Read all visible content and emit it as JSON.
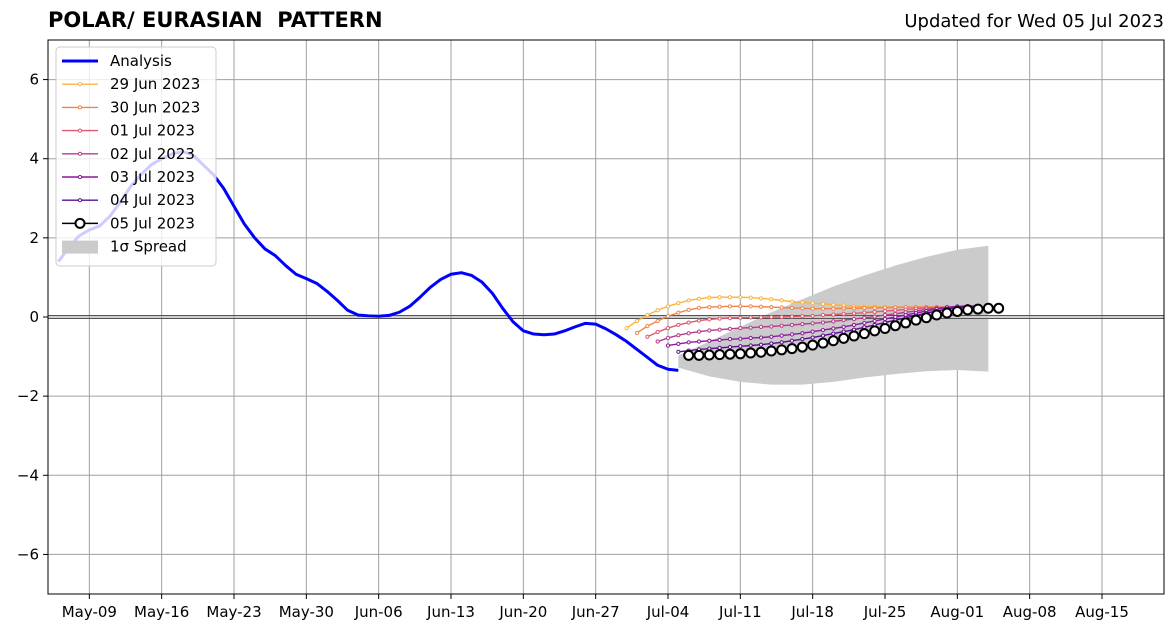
{
  "header": {
    "title": "POLAR/ EURASIAN  PATTERN",
    "updated": "Updated for Wed 05 Jul 2023"
  },
  "colors": {
    "analysis": "#0000ff",
    "f0629": "#fbb33f",
    "f0630": "#f1844a",
    "f0701": "#dd5a6e",
    "f0702": "#b63c8a",
    "f0703": "#8b1a9c",
    "f0704": "#5a0e8e",
    "f0705": "#000000",
    "spread": "#cbcbcb",
    "grid": "#a0a0a0"
  },
  "chart_data": {
    "type": "line",
    "xaxis": {
      "type": "date",
      "range": [
        "2023-05-05",
        "2023-08-21"
      ],
      "ticks": [
        "2023-05-09",
        "2023-05-16",
        "2023-05-23",
        "2023-05-30",
        "2023-06-06",
        "2023-06-13",
        "2023-06-20",
        "2023-06-27",
        "2023-07-04",
        "2023-07-11",
        "2023-07-18",
        "2023-07-25",
        "2023-08-01",
        "2023-08-08",
        "2023-08-15"
      ],
      "tick_labels": [
        "May-09",
        "May-16",
        "May-23",
        "May-30",
        "Jun-06",
        "Jun-13",
        "Jun-20",
        "Jun-27",
        "Jul-04",
        "Jul-11",
        "Jul-18",
        "Jul-25",
        "Aug-01",
        "Aug-08",
        "Aug-15"
      ]
    },
    "yaxis": {
      "range": [
        -7,
        7
      ],
      "ticks": [
        -6,
        -4,
        -2,
        0,
        2,
        4,
        6
      ],
      "tick_labels": [
        "−6",
        "−4",
        "−2",
        "0",
        "2",
        "4",
        "6"
      ]
    },
    "grid": true,
    "legend_position": "top-left",
    "legend": [
      "Analysis",
      "29 Jun 2023",
      "30 Jun 2023",
      "01 Jul 2023",
      "02 Jul 2023",
      "03 Jul 2023",
      "04 Jul 2023",
      "05 Jul 2023",
      "1σ Spread"
    ],
    "analysis": {
      "name": "Analysis",
      "x": [
        "2023-05-06",
        "2023-05-07",
        "2023-05-08",
        "2023-05-09",
        "2023-05-10",
        "2023-05-11",
        "2023-05-12",
        "2023-05-13",
        "2023-05-14",
        "2023-05-15",
        "2023-05-16",
        "2023-05-17",
        "2023-05-18",
        "2023-05-19",
        "2023-05-20",
        "2023-05-21",
        "2023-05-22",
        "2023-05-23",
        "2023-05-24",
        "2023-05-25",
        "2023-05-26",
        "2023-05-27",
        "2023-05-28",
        "2023-05-29",
        "2023-05-30",
        "2023-05-31",
        "2023-06-01",
        "2023-06-02",
        "2023-06-03",
        "2023-06-04",
        "2023-06-05",
        "2023-06-06",
        "2023-06-07",
        "2023-06-08",
        "2023-06-09",
        "2023-06-10",
        "2023-06-11",
        "2023-06-12",
        "2023-06-13",
        "2023-06-14",
        "2023-06-15",
        "2023-06-16",
        "2023-06-17",
        "2023-06-18",
        "2023-06-19",
        "2023-06-20",
        "2023-06-21",
        "2023-06-22",
        "2023-06-23",
        "2023-06-24",
        "2023-06-25",
        "2023-06-26",
        "2023-06-27",
        "2023-06-28",
        "2023-06-29",
        "2023-06-30",
        "2023-07-01",
        "2023-07-02",
        "2023-07-03",
        "2023-07-04",
        "2023-07-05"
      ],
      "y": [
        1.4,
        1.75,
        2.05,
        2.2,
        2.3,
        2.55,
        2.9,
        3.3,
        3.6,
        3.85,
        4.0,
        4.12,
        4.18,
        4.1,
        3.85,
        3.6,
        3.25,
        2.8,
        2.35,
        2.0,
        1.72,
        1.55,
        1.3,
        1.08,
        0.97,
        0.85,
        0.65,
        0.42,
        0.17,
        0.05,
        0.03,
        0.02,
        0.04,
        0.12,
        0.27,
        0.5,
        0.75,
        0.95,
        1.08,
        1.12,
        1.05,
        0.88,
        0.6,
        0.22,
        -0.12,
        -0.35,
        -0.43,
        -0.45,
        -0.43,
        -0.35,
        -0.25,
        -0.16,
        -0.18,
        -0.3,
        -0.45,
        -0.62,
        -0.82,
        -1.02,
        -1.22,
        -1.32,
        -1.35
      ]
    },
    "forecasts": [
      {
        "name": "29 Jun 2023",
        "start": "2023-06-30",
        "y": [
          -0.28,
          -0.1,
          0.05,
          0.17,
          0.27,
          0.35,
          0.42,
          0.46,
          0.49,
          0.5,
          0.5,
          0.5,
          0.49,
          0.47,
          0.45,
          0.42,
          0.39,
          0.37,
          0.35,
          0.33,
          0.31,
          0.29,
          0.27,
          0.26,
          0.26,
          0.25,
          0.25,
          0.25,
          0.25,
          0.25,
          0.25,
          0.25,
          0.25,
          0.25,
          0.25
        ]
      },
      {
        "name": "30 Jun 2023",
        "start": "2023-07-01",
        "y": [
          -0.4,
          -0.23,
          -0.1,
          0.02,
          0.11,
          0.18,
          0.23,
          0.25,
          0.26,
          0.27,
          0.27,
          0.27,
          0.26,
          0.25,
          0.24,
          0.23,
          0.22,
          0.21,
          0.21,
          0.21,
          0.22,
          0.22,
          0.23,
          0.23,
          0.24,
          0.24,
          0.25,
          0.25,
          0.25,
          0.25,
          0.25,
          0.25,
          0.25,
          0.25
        ]
      },
      {
        "name": "01 Jul 2023",
        "start": "2023-07-02",
        "y": [
          -0.5,
          -0.38,
          -0.28,
          -0.2,
          -0.14,
          -0.09,
          -0.06,
          -0.04,
          -0.03,
          -0.02,
          -0.01,
          -0.01,
          0.0,
          0.0,
          0.01,
          0.02,
          0.03,
          0.05,
          0.06,
          0.08,
          0.09,
          0.11,
          0.13,
          0.15,
          0.17,
          0.19,
          0.21,
          0.23,
          0.24,
          0.25,
          0.25,
          0.25,
          0.25
        ]
      },
      {
        "name": "02 Jul 2023",
        "start": "2023-07-03",
        "y": [
          -0.62,
          -0.53,
          -0.46,
          -0.41,
          -0.37,
          -0.34,
          -0.32,
          -0.3,
          -0.28,
          -0.27,
          -0.25,
          -0.24,
          -0.22,
          -0.2,
          -0.18,
          -0.16,
          -0.14,
          -0.11,
          -0.08,
          -0.05,
          -0.02,
          0.01,
          0.05,
          0.08,
          0.12,
          0.15,
          0.19,
          0.22,
          0.25,
          0.26,
          0.26,
          0.26
        ]
      },
      {
        "name": "03 Jul 2023",
        "start": "2023-07-04",
        "y": [
          -0.72,
          -0.68,
          -0.64,
          -0.62,
          -0.6,
          -0.58,
          -0.56,
          -0.55,
          -0.53,
          -0.52,
          -0.5,
          -0.47,
          -0.44,
          -0.41,
          -0.37,
          -0.33,
          -0.29,
          -0.25,
          -0.2,
          -0.15,
          -0.1,
          -0.05,
          0.0,
          0.05,
          0.1,
          0.15,
          0.2,
          0.24,
          0.27,
          0.28,
          0.28
        ]
      },
      {
        "name": "04 Jul 2023",
        "start": "2023-07-05",
        "y": [
          -0.88,
          -0.85,
          -0.82,
          -0.8,
          -0.78,
          -0.76,
          -0.74,
          -0.72,
          -0.7,
          -0.67,
          -0.64,
          -0.6,
          -0.56,
          -0.52,
          -0.47,
          -0.42,
          -0.37,
          -0.32,
          -0.26,
          -0.2,
          -0.14,
          -0.08,
          -0.02,
          0.04,
          0.1,
          0.15,
          0.2,
          0.24,
          0.26,
          0.27
        ]
      },
      {
        "name": "05 Jul 2023",
        "start": "2023-07-06",
        "y": [
          -0.97,
          -0.97,
          -0.96,
          -0.95,
          -0.94,
          -0.93,
          -0.91,
          -0.89,
          -0.86,
          -0.83,
          -0.8,
          -0.76,
          -0.71,
          -0.66,
          -0.6,
          -0.54,
          -0.48,
          -0.42,
          -0.35,
          -0.29,
          -0.22,
          -0.15,
          -0.08,
          -0.02,
          0.05,
          0.1,
          0.14,
          0.18,
          0.2,
          0.22,
          0.22
        ]
      }
    ],
    "spread": {
      "name": "1σ Spread",
      "x": [
        "2023-07-05",
        "2023-07-08",
        "2023-07-11",
        "2023-07-14",
        "2023-07-17",
        "2023-07-20",
        "2023-07-23",
        "2023-07-26",
        "2023-07-29",
        "2023-08-01",
        "2023-08-04"
      ],
      "upper": [
        -0.97,
        -0.62,
        -0.25,
        0.12,
        0.45,
        0.77,
        1.05,
        1.3,
        1.52,
        1.7,
        1.8
      ],
      "lower": [
        -1.28,
        -1.5,
        -1.64,
        -1.71,
        -1.71,
        -1.64,
        -1.53,
        -1.44,
        -1.37,
        -1.34,
        -1.38
      ]
    }
  }
}
